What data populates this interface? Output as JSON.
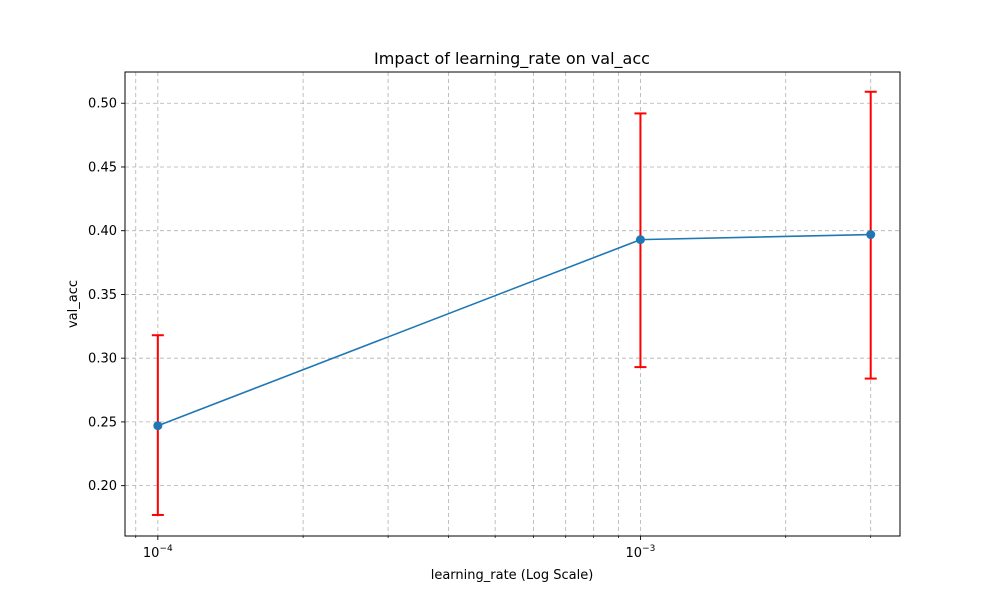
{
  "chart_data": {
    "type": "line",
    "title": "Impact of learning_rate on val_acc",
    "xlabel": "learning_rate (Log Scale)",
    "ylabel": "val_acc",
    "x_scale": "log",
    "xlim": [
      8.55e-05,
      0.00345
    ],
    "ylim": [
      0.1605,
      0.5245
    ],
    "grid": true,
    "x_major_ticks": [
      {
        "value": 0.0001,
        "base": "10",
        "exp": "−4"
      },
      {
        "value": 0.001,
        "base": "10",
        "exp": "−3"
      }
    ],
    "y_ticks": [
      "0.20",
      "0.25",
      "0.30",
      "0.35",
      "0.40",
      "0.45",
      "0.50"
    ],
    "series": [
      {
        "x": [
          0.0001,
          0.001,
          0.003
        ],
        "y": [
          0.247,
          0.393,
          0.397
        ],
        "err_low": [
          0.177,
          0.293,
          0.284
        ],
        "err_high": [
          0.318,
          0.492,
          0.509
        ],
        "line_color": "#1f77b4",
        "error_color": "#ff0000"
      }
    ]
  }
}
